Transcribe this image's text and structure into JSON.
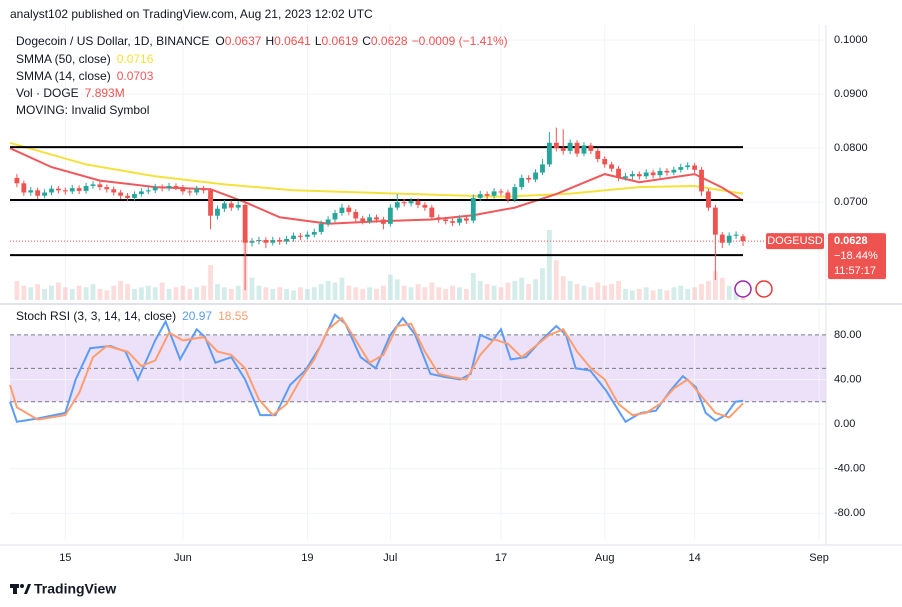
{
  "header": {
    "publisher": "analyst102 published on TradingView.com, Aug 21, 2023 12:02 UTC"
  },
  "chart_data": [
    {
      "type": "candlestick",
      "title": "Dogecoin / US Dollar, 1D, BINANCE",
      "ohlc_labels": [
        "O",
        "H",
        "L",
        "C"
      ],
      "change": "−0.0009 (−1.41%)",
      "up_color": "#26a69a",
      "down_color": "#ef5350",
      "xlim": [
        -1,
        117
      ],
      "ylim": [
        0.0519,
        0.1028
      ],
      "yticks": [
        {
          "value": 0.1,
          "label": "0.1000"
        },
        {
          "value": 0.09,
          "label": "0.0900"
        },
        {
          "value": 0.08,
          "label": "0.0800"
        },
        {
          "value": 0.07,
          "label": "0.0700"
        }
      ],
      "ohlc": [
        [
          0.0745,
          0.0752,
          0.0728,
          0.0735
        ],
        [
          0.0735,
          0.074,
          0.0712,
          0.0718
        ],
        [
          0.0718,
          0.0728,
          0.0712,
          0.0722
        ],
        [
          0.0722,
          0.0727,
          0.0706,
          0.0712
        ],
        [
          0.0712,
          0.0724,
          0.0707,
          0.0718
        ],
        [
          0.0718,
          0.0731,
          0.0713,
          0.0725
        ],
        [
          0.0725,
          0.073,
          0.0716,
          0.0722
        ],
        [
          0.0722,
          0.0727,
          0.0714,
          0.072
        ],
        [
          0.072,
          0.0732,
          0.0715,
          0.0726
        ],
        [
          0.0726,
          0.0731,
          0.0715,
          0.0721
        ],
        [
          0.0721,
          0.0736,
          0.0716,
          0.073
        ],
        [
          0.073,
          0.0739,
          0.0725,
          0.0733
        ],
        [
          0.0733,
          0.0738,
          0.0722,
          0.0728
        ],
        [
          0.0728,
          0.0733,
          0.0718,
          0.0724
        ],
        [
          0.0724,
          0.0729,
          0.0712,
          0.0718
        ],
        [
          0.0718,
          0.0723,
          0.0706,
          0.0712
        ],
        [
          0.0712,
          0.0717,
          0.0702,
          0.0708
        ],
        [
          0.0708,
          0.072,
          0.0703,
          0.0715
        ],
        [
          0.0715,
          0.0726,
          0.071,
          0.072
        ],
        [
          0.072,
          0.0728,
          0.0715,
          0.0722
        ],
        [
          0.0722,
          0.0734,
          0.0717,
          0.0728
        ],
        [
          0.0728,
          0.0733,
          0.072,
          0.0726
        ],
        [
          0.0726,
          0.0736,
          0.0721,
          0.073
        ],
        [
          0.073,
          0.0735,
          0.0722,
          0.0728
        ],
        [
          0.0728,
          0.0732,
          0.0714,
          0.072
        ],
        [
          0.072,
          0.0725,
          0.0712,
          0.0718
        ],
        [
          0.0718,
          0.073,
          0.0713,
          0.0725
        ],
        [
          0.0725,
          0.073,
          0.0716,
          0.0722
        ],
        [
          0.0722,
          0.0726,
          0.065,
          0.0675
        ],
        [
          0.0675,
          0.0694,
          0.0668,
          0.0688
        ],
        [
          0.0688,
          0.0704,
          0.0682,
          0.0698
        ],
        [
          0.0698,
          0.0703,
          0.0684,
          0.069
        ],
        [
          0.069,
          0.0702,
          0.0685,
          0.0695
        ],
        [
          0.0695,
          0.0698,
          0.0537,
          0.0625
        ],
        [
          0.0625,
          0.0634,
          0.0618,
          0.0628
        ],
        [
          0.0628,
          0.0636,
          0.0622,
          0.063
        ],
        [
          0.063,
          0.0635,
          0.0615,
          0.0625
        ],
        [
          0.0625,
          0.0636,
          0.062,
          0.063
        ],
        [
          0.063,
          0.0635,
          0.0621,
          0.0627
        ],
        [
          0.0627,
          0.0638,
          0.0622,
          0.0632
        ],
        [
          0.0632,
          0.0644,
          0.0627,
          0.0638
        ],
        [
          0.0638,
          0.0643,
          0.063,
          0.0636
        ],
        [
          0.0636,
          0.0646,
          0.0631,
          0.064
        ],
        [
          0.064,
          0.0651,
          0.0635,
          0.0645
        ],
        [
          0.0645,
          0.0666,
          0.064,
          0.066
        ],
        [
          0.066,
          0.0674,
          0.0655,
          0.0668
        ],
        [
          0.0668,
          0.0686,
          0.0663,
          0.068
        ],
        [
          0.068,
          0.0697,
          0.0675,
          0.069
        ],
        [
          0.069,
          0.0695,
          0.0676,
          0.0682
        ],
        [
          0.0682,
          0.0687,
          0.0664,
          0.067
        ],
        [
          0.067,
          0.0675,
          0.0659,
          0.0665
        ],
        [
          0.0665,
          0.0678,
          0.066,
          0.0672
        ],
        [
          0.0672,
          0.0677,
          0.0662,
          0.0668
        ],
        [
          0.0668,
          0.0673,
          0.065,
          0.066
        ],
        [
          0.066,
          0.0696,
          0.0655,
          0.069
        ],
        [
          0.069,
          0.0715,
          0.0685,
          0.07
        ],
        [
          0.07,
          0.0706,
          0.0692,
          0.0698
        ],
        [
          0.0698,
          0.0708,
          0.0692,
          0.0702
        ],
        [
          0.0702,
          0.0707,
          0.0689,
          0.0695
        ],
        [
          0.0695,
          0.07,
          0.0684,
          0.069
        ],
        [
          0.069,
          0.0695,
          0.0666,
          0.0672
        ],
        [
          0.0672,
          0.0677,
          0.0662,
          0.0668
        ],
        [
          0.0668,
          0.0673,
          0.0659,
          0.0665
        ],
        [
          0.0665,
          0.067,
          0.0656,
          0.0662
        ],
        [
          0.0662,
          0.0676,
          0.0657,
          0.067
        ],
        [
          0.067,
          0.0675,
          0.066,
          0.0666
        ],
        [
          0.0666,
          0.0714,
          0.0661,
          0.0708
        ],
        [
          0.0708,
          0.0721,
          0.0702,
          0.0715
        ],
        [
          0.0715,
          0.072,
          0.0706,
          0.0712
        ],
        [
          0.0712,
          0.0726,
          0.0707,
          0.072
        ],
        [
          0.072,
          0.0725,
          0.0712,
          0.0718
        ],
        [
          0.0718,
          0.0723,
          0.0699,
          0.0705
        ],
        [
          0.0705,
          0.0734,
          0.07,
          0.0728
        ],
        [
          0.0728,
          0.0751,
          0.0723,
          0.0745
        ],
        [
          0.0745,
          0.075,
          0.0736,
          0.0742
        ],
        [
          0.0742,
          0.0761,
          0.0737,
          0.0755
        ],
        [
          0.0755,
          0.078,
          0.075,
          0.077
        ],
        [
          0.077,
          0.083,
          0.0765,
          0.081
        ],
        [
          0.081,
          0.0838,
          0.0794,
          0.08
        ],
        [
          0.08,
          0.0835,
          0.0788,
          0.0795
        ],
        [
          0.0795,
          0.0816,
          0.0789,
          0.081
        ],
        [
          0.081,
          0.0815,
          0.0784,
          0.079
        ],
        [
          0.079,
          0.0811,
          0.0785,
          0.0805
        ],
        [
          0.0805,
          0.081,
          0.0789,
          0.0795
        ],
        [
          0.0795,
          0.08,
          0.0774,
          0.078
        ],
        [
          0.078,
          0.0785,
          0.0764,
          0.077
        ],
        [
          0.077,
          0.0775,
          0.0756,
          0.0762
        ],
        [
          0.0762,
          0.0767,
          0.0739,
          0.0745
        ],
        [
          0.0745,
          0.0754,
          0.074,
          0.0748
        ],
        [
          0.0748,
          0.0758,
          0.0742,
          0.0752
        ],
        [
          0.0752,
          0.0757,
          0.0742,
          0.0748
        ],
        [
          0.0748,
          0.0761,
          0.0743,
          0.0755
        ],
        [
          0.0755,
          0.076,
          0.0744,
          0.075
        ],
        [
          0.075,
          0.0764,
          0.0745,
          0.0758
        ],
        [
          0.0758,
          0.0763,
          0.0749,
          0.0755
        ],
        [
          0.0755,
          0.0766,
          0.075,
          0.076
        ],
        [
          0.076,
          0.0771,
          0.0755,
          0.0765
        ],
        [
          0.0765,
          0.0774,
          0.076,
          0.0768
        ],
        [
          0.0768,
          0.0773,
          0.0754,
          0.076
        ],
        [
          0.076,
          0.0765,
          0.0712,
          0.072
        ],
        [
          0.072,
          0.0725,
          0.0684,
          0.069
        ],
        [
          0.069,
          0.0695,
          0.0556,
          0.064
        ],
        [
          0.064,
          0.0645,
          0.0615,
          0.0625
        ],
        [
          0.0625,
          0.0644,
          0.062,
          0.0638
        ],
        [
          0.0638,
          0.0646,
          0.0632,
          0.064
        ],
        [
          0.0637,
          0.0641,
          0.0619,
          0.0628
        ]
      ],
      "volume_label": "Vol · DOGE",
      "volume_value_label": "7.893M",
      "volume": [
        12,
        9,
        8,
        10,
        7,
        9,
        11,
        8,
        7,
        9,
        8,
        10,
        7,
        6,
        9,
        12,
        10,
        7,
        8,
        9,
        8,
        11,
        7,
        8,
        9,
        7,
        8,
        9,
        22,
        10,
        8,
        7,
        9,
        36,
        14,
        9,
        8,
        7,
        8,
        7,
        6,
        8,
        7,
        8,
        10,
        12,
        11,
        14,
        9,
        8,
        7,
        8,
        7,
        9,
        16,
        13,
        9,
        8,
        10,
        8,
        11,
        8,
        7,
        9,
        8,
        7,
        17,
        12,
        10,
        9,
        8,
        11,
        12,
        14,
        10,
        13,
        20,
        44,
        25,
        15,
        12,
        10,
        9,
        8,
        11,
        9,
        10,
        12,
        7,
        6,
        7,
        8,
        6,
        7,
        6,
        8,
        9,
        7,
        8,
        10,
        12,
        18,
        14,
        9,
        8,
        7.893
      ],
      "series": [
        {
          "name": "SMMA (50, close)",
          "color": "#f5e13b",
          "x": [
            -1,
            10,
            20,
            30,
            40,
            55,
            70,
            80,
            90,
            98,
            105
          ],
          "values": [
            0.081,
            0.077,
            0.0748,
            0.0733,
            0.0722,
            0.0716,
            0.071,
            0.0716,
            0.0728,
            0.073,
            0.0716
          ]
        },
        {
          "name": "SMMA (14, close)",
          "color": "#f0575b",
          "x": [
            -1,
            5,
            12,
            20,
            28,
            33,
            38,
            45,
            53,
            60,
            66,
            72,
            78,
            85,
            90,
            98,
            102,
            105
          ],
          "values": [
            0.08,
            0.0765,
            0.074,
            0.0728,
            0.0724,
            0.07,
            0.0672,
            0.066,
            0.0665,
            0.0668,
            0.0676,
            0.069,
            0.0715,
            0.0752,
            0.0737,
            0.0752,
            0.0727,
            0.0703
          ]
        }
      ],
      "levels": [
        0.0802,
        0.0704,
        0.0602
      ],
      "note": "MOVING: Invalid Symbol",
      "symbol": "DOGEUSD",
      "change_pct": "−18.44%",
      "countdown": "11:57:17"
    },
    {
      "type": "stoch",
      "title": "Stoch RSI (3, 3, 14, 14, close)",
      "band_color": "#e1cdf7",
      "xlim": [
        -1,
        117
      ],
      "ylim": [
        -104,
        105
      ],
      "xticks": [
        {
          "value": 7,
          "label": "15"
        },
        {
          "value": 24,
          "label": "Jun"
        },
        {
          "value": 42,
          "label": "19"
        },
        {
          "value": 54,
          "label": "Jul"
        },
        {
          "value": 70,
          "label": "17"
        },
        {
          "value": 85,
          "label": "Aug"
        },
        {
          "value": 98,
          "label": "14"
        },
        {
          "value": 116,
          "label": "Sep"
        }
      ],
      "yticks": [
        {
          "value": 80,
          "label": "80.00"
        },
        {
          "value": 40,
          "label": "40.00"
        },
        {
          "value": 0,
          "label": "0.00"
        },
        {
          "value": -40,
          "label": "-40.00"
        },
        {
          "value": -80,
          "label": "-80.00"
        }
      ],
      "levels": [
        80,
        50,
        20
      ],
      "series": [
        {
          "name": "K",
          "color": "#5b9cf6",
          "x": [
            -1,
            0,
            3,
            7,
            8.5,
            10.6,
            13.5,
            15.7,
            17.5,
            20,
            21.5,
            23.6,
            26,
            27.2,
            28.7,
            31,
            33,
            35.2,
            37.4,
            39.5,
            41.7,
            43.9,
            46,
            47.5,
            49.7,
            51.9,
            54,
            55.8,
            57.6,
            59.8,
            62,
            64.1,
            65.6,
            67,
            68.8,
            70,
            71.4,
            73.6,
            75.8,
            78,
            79.4,
            80.8,
            82.9,
            85.2,
            88,
            90.2,
            92.4,
            94.5,
            96.3,
            98.2,
            99.6,
            101,
            102.5,
            103.9,
            105
          ],
          "values": [
            20,
            2,
            5,
            10,
            40,
            68,
            70,
            65,
            40,
            75,
            92,
            58,
            85,
            78,
            55,
            60,
            40,
            8,
            8,
            35,
            48,
            70,
            98,
            90,
            60,
            50,
            80,
            95,
            80,
            45,
            42,
            40,
            45,
            80,
            75,
            85,
            58,
            60,
            75,
            88,
            80,
            50,
            48,
            30,
            2,
            10,
            12,
            30,
            43,
            33,
            10,
            3,
            8,
            20,
            20.97
          ]
        },
        {
          "name": "D",
          "color": "#ff9d6e",
          "x": [
            -1,
            0,
            3,
            7,
            9,
            11,
            13,
            16,
            18,
            20,
            22,
            24,
            27,
            29,
            31,
            33,
            35,
            37,
            39,
            41,
            43,
            45,
            47,
            49,
            51,
            53,
            55,
            57,
            59,
            61,
            63,
            65,
            67,
            69,
            71,
            73,
            75,
            77,
            79,
            81,
            83,
            85,
            87,
            89,
            91,
            93,
            95,
            97,
            99,
            101,
            103,
            105
          ],
          "values": [
            35,
            15,
            4,
            8,
            28,
            60,
            70,
            65,
            52,
            57,
            82,
            75,
            78,
            65,
            62,
            50,
            22,
            8,
            18,
            40,
            58,
            85,
            95,
            75,
            55,
            62,
            88,
            90,
            65,
            45,
            42,
            40,
            62,
            76,
            72,
            60,
            70,
            80,
            85,
            65,
            50,
            40,
            18,
            8,
            10,
            18,
            32,
            40,
            25,
            10,
            6,
            18.55
          ]
        }
      ]
    }
  ],
  "footer": {
    "brand": "TradingView"
  }
}
